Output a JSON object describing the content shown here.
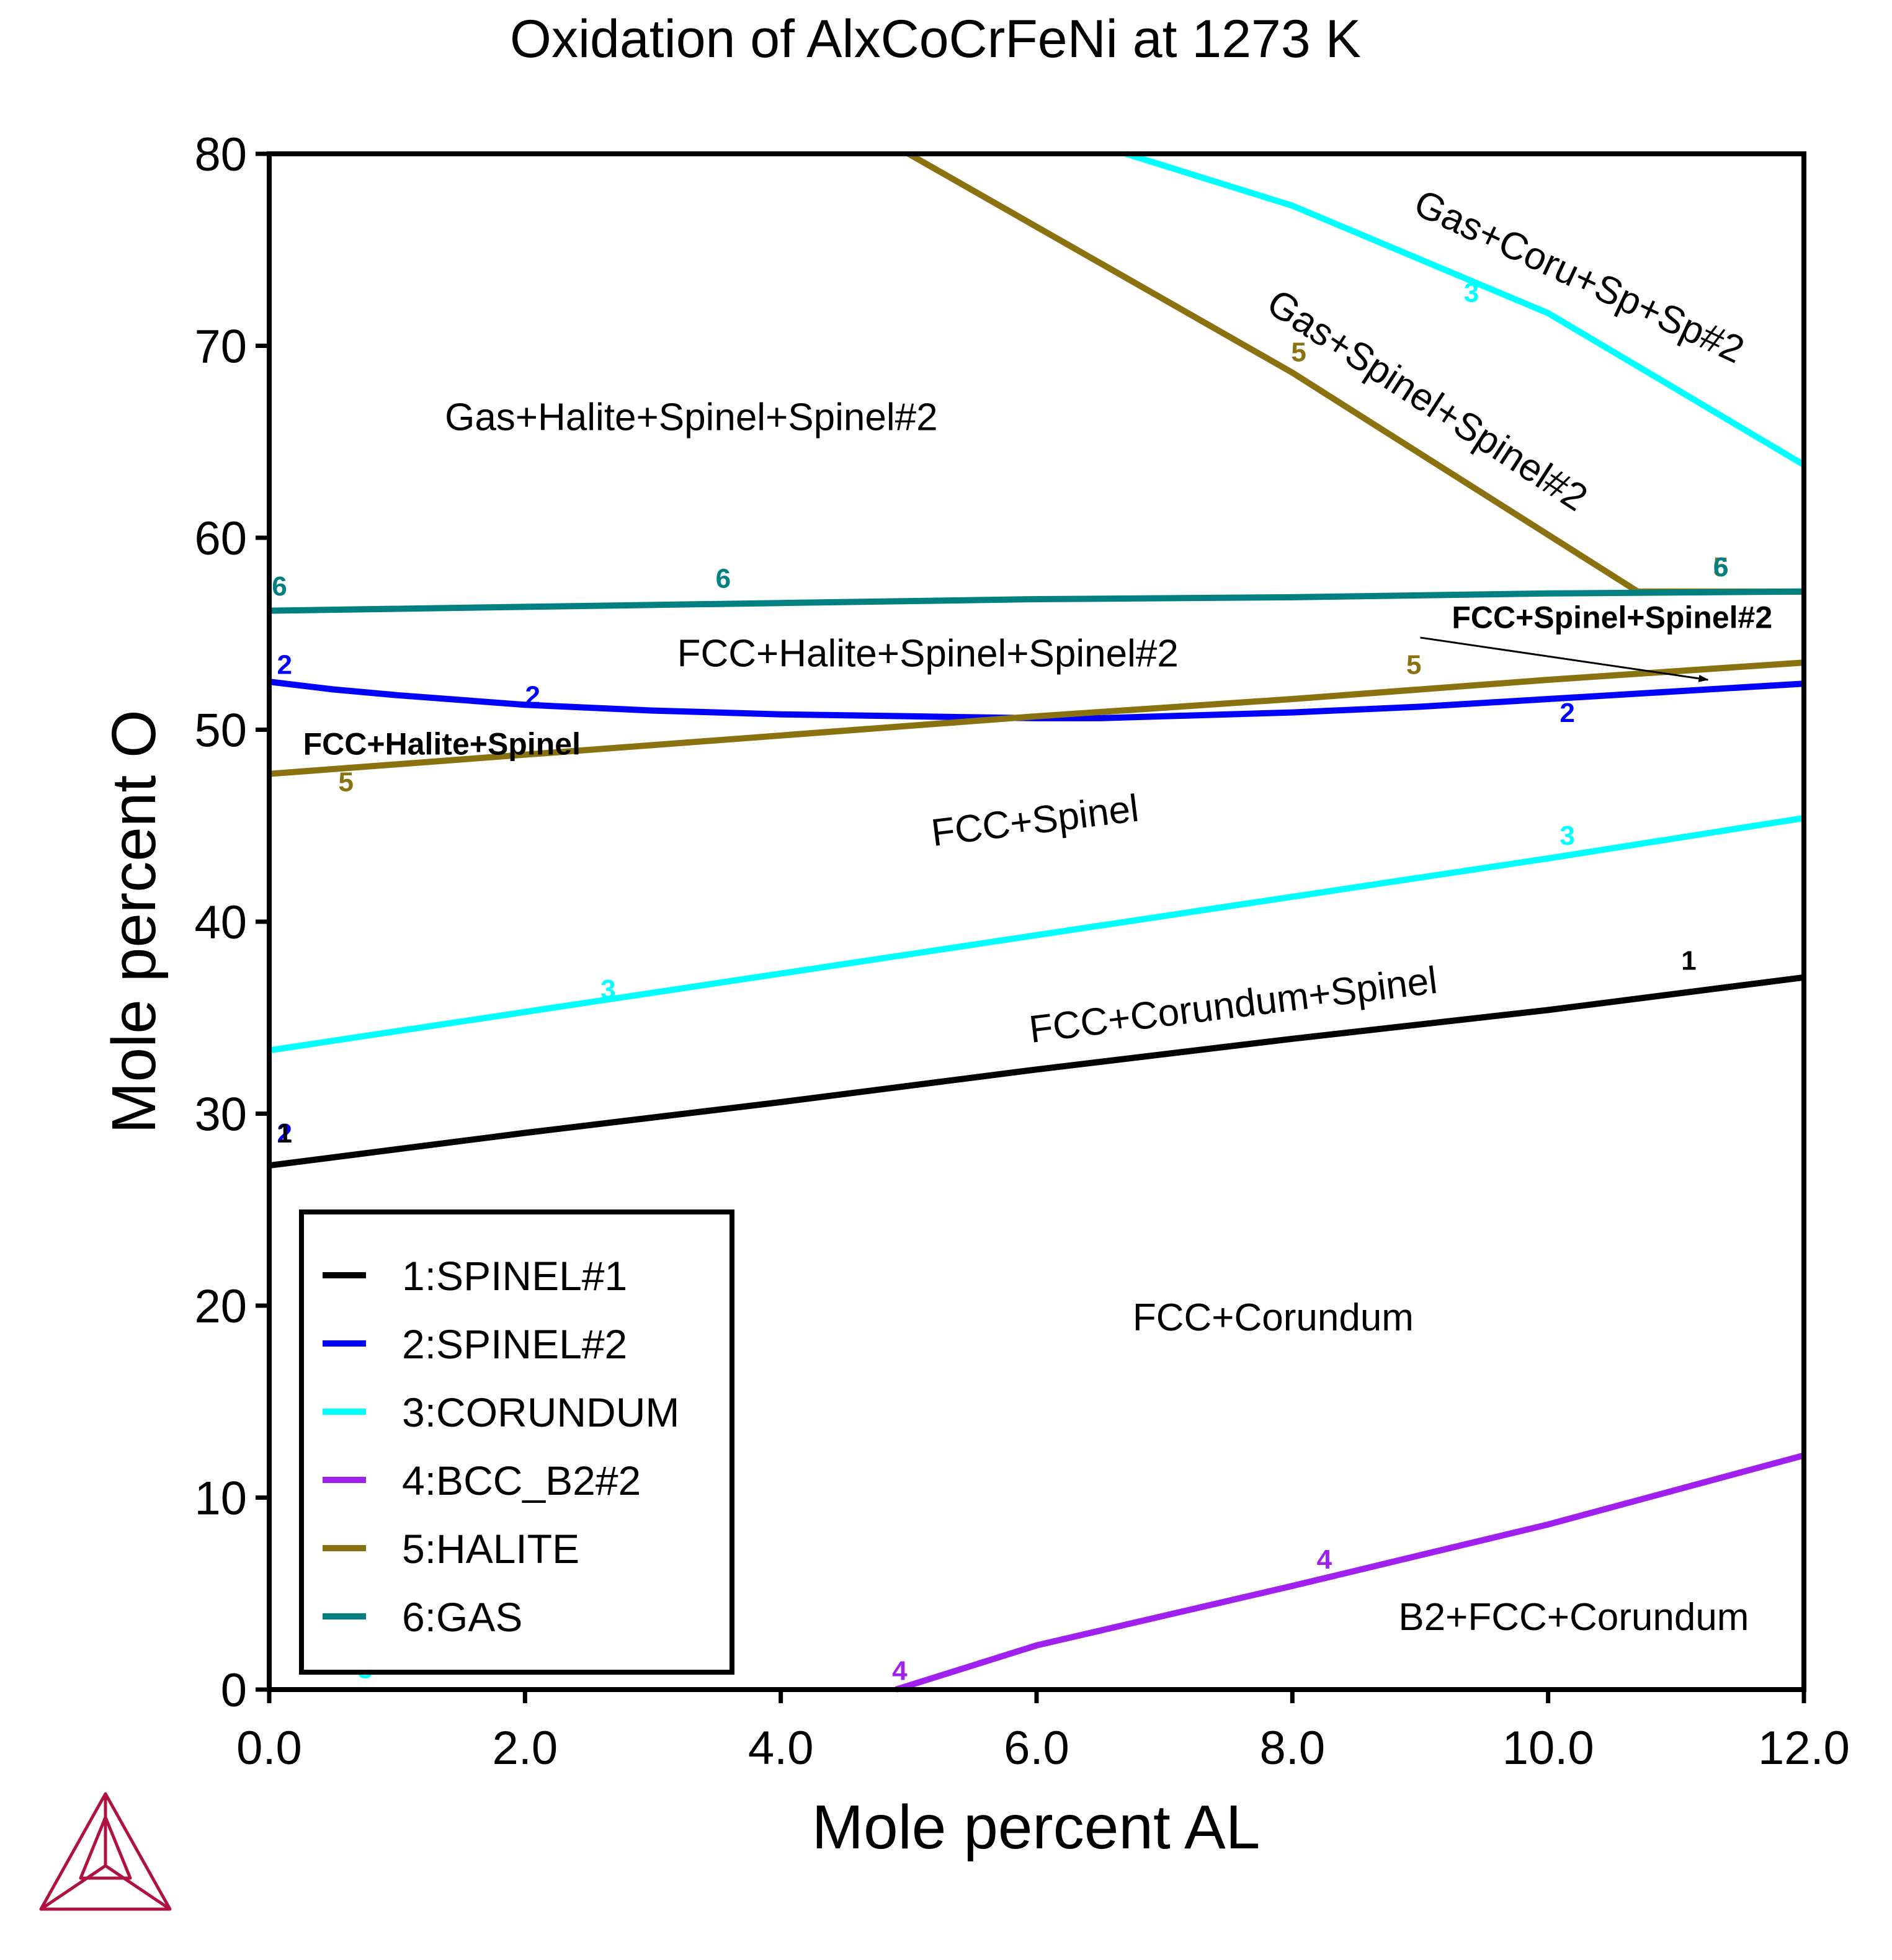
{
  "chart_data": {
    "type": "line",
    "title": "Oxidation of AlxCoCrFeNi at 1273 K",
    "xlabel": "Mole percent AL",
    "ylabel": "Mole percent O",
    "xlim": [
      0,
      12
    ],
    "ylim": [
      0,
      80
    ],
    "x_ticks": [
      0,
      2,
      4,
      6,
      8,
      10,
      12
    ],
    "x_tick_labels": [
      "0.0",
      "2.0",
      "4.0",
      "6.0",
      "8.0",
      "10.0",
      "12.0"
    ],
    "y_ticks": [
      0,
      10,
      20,
      30,
      40,
      50,
      60,
      70,
      80
    ],
    "y_tick_labels": [
      "0",
      "10",
      "20",
      "30",
      "40",
      "50",
      "60",
      "70",
      "80"
    ],
    "grid": false,
    "legend_position": "bottom-left",
    "series": [
      {
        "id": "1",
        "name": "1:SPINEL#1",
        "color": "#000000",
        "points": [
          [
            0,
            27.3
          ],
          [
            2,
            29.0
          ],
          [
            4,
            30.6
          ],
          [
            6,
            32.3
          ],
          [
            8,
            33.9
          ],
          [
            10,
            35.4
          ],
          [
            12,
            37.1
          ]
        ],
        "markers": [
          {
            "text": "1",
            "x": 11.1,
            "y": 37.5
          }
        ]
      },
      {
        "id": "2",
        "name": "2:SPINEL#2",
        "color": "#0000ff",
        "points": [
          [
            0,
            52.5
          ],
          [
            0.5,
            52.1
          ],
          [
            1,
            51.8
          ],
          [
            2,
            51.3
          ],
          [
            3,
            51.0
          ],
          [
            4,
            50.8
          ],
          [
            5,
            50.7
          ],
          [
            6,
            50.6
          ],
          [
            6.5,
            50.6
          ],
          [
            7,
            50.7
          ],
          [
            8,
            50.9
          ],
          [
            9,
            51.2
          ],
          [
            10,
            51.6
          ],
          [
            11,
            52.0
          ],
          [
            12,
            52.4
          ]
        ],
        "markers": [
          {
            "text": "2",
            "x": 0.12,
            "y": 52.9
          },
          {
            "text": "2",
            "x": 2.06,
            "y": 51.3
          },
          {
            "text": "2",
            "x": 10.15,
            "y": 50.4
          }
        ]
      },
      {
        "id": "3a",
        "name": "3:CORUNDUM",
        "color": "#00ffff",
        "points": [
          [
            0,
            33.3
          ],
          [
            2,
            35.3
          ],
          [
            4,
            37.3
          ],
          [
            6,
            39.3
          ],
          [
            8,
            41.3
          ],
          [
            10,
            43.3
          ],
          [
            12,
            45.4
          ]
        ],
        "markers": [
          {
            "text": "3",
            "x": 2.65,
            "y": 36.0
          },
          {
            "text": "3",
            "x": 10.15,
            "y": 44.0
          }
        ]
      },
      {
        "id": "3b",
        "name": "",
        "color": "#00ffff",
        "points": [
          [
            6.7,
            80
          ],
          [
            8,
            77.3
          ],
          [
            10,
            71.7
          ],
          [
            12,
            63.8
          ]
        ],
        "markers": [
          {
            "text": "3",
            "x": 9.4,
            "y": 72.3
          }
        ]
      },
      {
        "id": "4",
        "name": "4:BCC_B2#2",
        "color": "#a020f0",
        "points": [
          [
            4.9,
            0
          ],
          [
            6,
            2.3
          ],
          [
            8,
            5.4
          ],
          [
            10,
            8.6
          ],
          [
            12,
            12.2
          ]
        ],
        "markers": [
          {
            "text": "4",
            "x": 4.93,
            "y": 0.5
          },
          {
            "text": "4",
            "x": 8.25,
            "y": 6.3
          }
        ]
      },
      {
        "id": "5a",
        "name": "5:HALITE",
        "color": "#8b7210",
        "points": [
          [
            0,
            47.7
          ],
          [
            2,
            48.7
          ],
          [
            4,
            49.7
          ],
          [
            6,
            50.7
          ],
          [
            8,
            51.6
          ],
          [
            10,
            52.6
          ],
          [
            12,
            53.5
          ]
        ],
        "markers": [
          {
            "text": "5",
            "x": 0.6,
            "y": 46.8
          },
          {
            "text": "5",
            "x": 8.95,
            "y": 52.9
          }
        ]
      },
      {
        "id": "5b",
        "name": "",
        "color": "#8b7210",
        "points": [
          [
            5,
            80
          ],
          [
            8,
            68.6
          ],
          [
            10.7,
            57.2
          ],
          [
            12,
            57.2
          ]
        ],
        "markers": [
          {
            "text": "5",
            "x": 8.05,
            "y": 69.2
          },
          {
            "text": "5",
            "x": 11.35,
            "y": 58.0
          }
        ]
      },
      {
        "id": "6",
        "name": "6:GAS",
        "color": "#008080",
        "points": [
          [
            0,
            56.2
          ],
          [
            2,
            56.4
          ],
          [
            4,
            56.6
          ],
          [
            6,
            56.8
          ],
          [
            8,
            56.9
          ],
          [
            10,
            57.1
          ],
          [
            12,
            57.2
          ]
        ],
        "markers": [
          {
            "text": "6",
            "x": 0.08,
            "y": 57.0
          },
          {
            "text": "6",
            "x": 3.55,
            "y": 57.4
          },
          {
            "text": "6",
            "x": 11.35,
            "y": 58.0
          }
        ]
      }
    ],
    "extra_markers": [
      {
        "text": "2",
        "x": 0.12,
        "y": 28.5,
        "color": "#0000ff"
      },
      {
        "text": "1",
        "x": 0.12,
        "y": 28.5,
        "color": "#000000"
      },
      {
        "text": "3",
        "x": 0.75,
        "y": 0.6,
        "color": "#00ffff"
      }
    ],
    "region_labels": [
      {
        "text": "Gas+Halite+Spinel+Spinel#2",
        "x": 3.3,
        "y": 65.6,
        "rotate": 0,
        "bold": false
      },
      {
        "text": "Gas+Coru+Sp+Sp#2",
        "x": 10.2,
        "y": 73.0,
        "rotate": 25,
        "bold": false
      },
      {
        "text": "Gas+Spinel+Spinel#2",
        "x": 9.0,
        "y": 66.6,
        "rotate": 33,
        "bold": false
      },
      {
        "text": "FCC+Halite+Spinel+Spinel#2",
        "x": 5.15,
        "y": 53.3,
        "rotate": 0,
        "bold": false
      },
      {
        "text": "FCC+Spinel+Spinel#2",
        "x": 10.5,
        "y": 55.3,
        "rotate": 0,
        "bold": true
      },
      {
        "text": "FCC+Halite+Spinel",
        "x": 1.35,
        "y": 48.7,
        "rotate": 0,
        "bold": true
      },
      {
        "text": "FCC+Spinel",
        "x": 6.0,
        "y": 44.6,
        "rotate": -7,
        "bold": false
      },
      {
        "text": "FCC+Corundum+Spinel",
        "x": 7.55,
        "y": 35.0,
        "rotate": -7,
        "bold": false
      },
      {
        "text": "FCC+Corundum",
        "x": 7.85,
        "y": 18.7,
        "rotate": 0,
        "bold": false
      },
      {
        "text": "B2+FCC+Corundum",
        "x": 10.2,
        "y": 3.1,
        "rotate": 0,
        "bold": false
      }
    ],
    "annotation_arrow": {
      "from": [
        9.0,
        54.8
      ],
      "to": [
        11.25,
        52.6
      ]
    }
  }
}
